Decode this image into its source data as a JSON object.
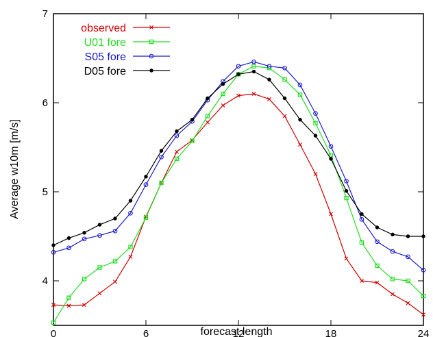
{
  "chart_data": {
    "type": "line",
    "xlabel": "forecast length",
    "ylabel": "Average w10m [m/s]",
    "xlim": [
      0,
      24
    ],
    "ylim": [
      3.5,
      7
    ],
    "x_ticks": [
      0,
      6,
      12,
      18,
      24
    ],
    "y_ticks": [
      4,
      5,
      6,
      7
    ],
    "grid": false,
    "legend_position": "top-left",
    "x": [
      0,
      1,
      2,
      3,
      4,
      5,
      6,
      7,
      8,
      9,
      10,
      11,
      12,
      13,
      14,
      15,
      16,
      17,
      18,
      19,
      20,
      21,
      22,
      23,
      24
    ],
    "series": [
      {
        "name": "observed",
        "color": "#d00000",
        "marker": "x",
        "values": [
          3.73,
          3.72,
          3.73,
          3.86,
          3.99,
          4.27,
          4.72,
          5.1,
          5.45,
          5.58,
          5.78,
          5.97,
          6.08,
          6.1,
          6.04,
          5.85,
          5.53,
          5.2,
          4.75,
          4.25,
          4.0,
          3.98,
          3.85,
          3.75,
          3.62
        ]
      },
      {
        "name": "U01 fore",
        "color": "#22dd22",
        "marker": "square",
        "values": [
          3.53,
          3.81,
          4.02,
          4.15,
          4.22,
          4.38,
          4.71,
          5.1,
          5.37,
          5.57,
          5.85,
          6.1,
          6.32,
          6.41,
          6.39,
          6.26,
          6.09,
          5.77,
          5.41,
          4.93,
          4.43,
          4.17,
          4.02,
          4.0,
          3.83
        ]
      },
      {
        "name": "S05 fore",
        "color": "#1a1acc",
        "marker": "circle",
        "values": [
          4.32,
          4.37,
          4.47,
          4.51,
          4.56,
          4.76,
          5.08,
          5.39,
          5.63,
          5.79,
          6.03,
          6.24,
          6.41,
          6.46,
          6.41,
          6.39,
          6.2,
          5.88,
          5.51,
          5.12,
          4.69,
          4.44,
          4.33,
          4.27,
          4.12
        ]
      },
      {
        "name": "D05 fore",
        "color": "#000000",
        "marker": "dot",
        "values": [
          4.4,
          4.48,
          4.54,
          4.63,
          4.7,
          4.9,
          5.17,
          5.46,
          5.68,
          5.81,
          6.05,
          6.21,
          6.32,
          6.35,
          6.26,
          6.05,
          5.81,
          5.63,
          5.37,
          5.01,
          4.75,
          4.6,
          4.52,
          4.5,
          4.5
        ]
      }
    ]
  }
}
